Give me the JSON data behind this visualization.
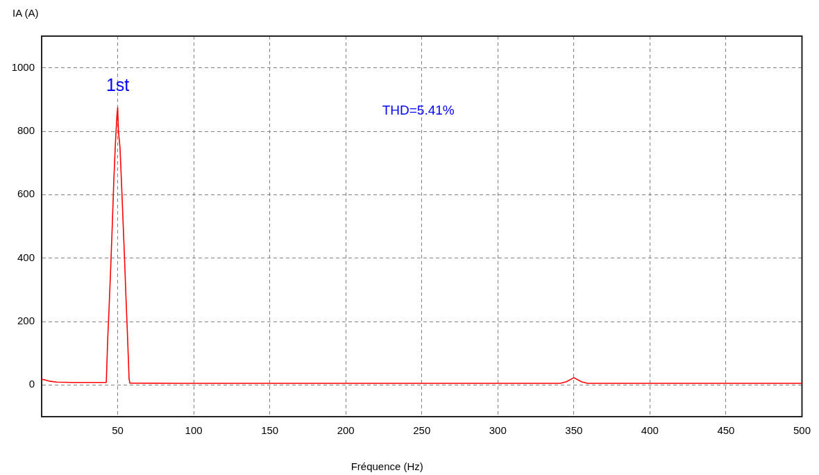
{
  "chart_data": {
    "type": "line",
    "ylabel": "IA (A)",
    "xlabel": "Fréquence (Hz)",
    "x": [
      0,
      2,
      5,
      10,
      20,
      30,
      42.5,
      43.5,
      44.5,
      45.5,
      46.5,
      47.5,
      48.5,
      49.5,
      50,
      50.5,
      51.5,
      52.5,
      53.5,
      54.5,
      55.5,
      56.5,
      57.5,
      58,
      100,
      200,
      300,
      341,
      345,
      350,
      355,
      359,
      400,
      450,
      500
    ],
    "series": [
      {
        "color": "#ff0000",
        "values": [
          18,
          16,
          12,
          9,
          8,
          8,
          8,
          150,
          260,
          380,
          510,
          650,
          760,
          850,
          875,
          800,
          750,
          640,
          520,
          400,
          270,
          150,
          20,
          6,
          5,
          5,
          5,
          5,
          10,
          23,
          10,
          5,
          5,
          5,
          5
        ]
      }
    ],
    "xlim": [
      0,
      500
    ],
    "xticks": [
      50,
      100,
      150,
      200,
      250,
      300,
      350,
      400,
      450,
      500
    ],
    "ylim": [
      -100,
      1100
    ],
    "yticks": [
      0,
      200,
      400,
      600,
      800,
      1000
    ],
    "grid": true,
    "annotations": [
      {
        "text": "1st",
        "x": 50,
        "y": 875
      },
      "THD=5.41%"
    ]
  }
}
